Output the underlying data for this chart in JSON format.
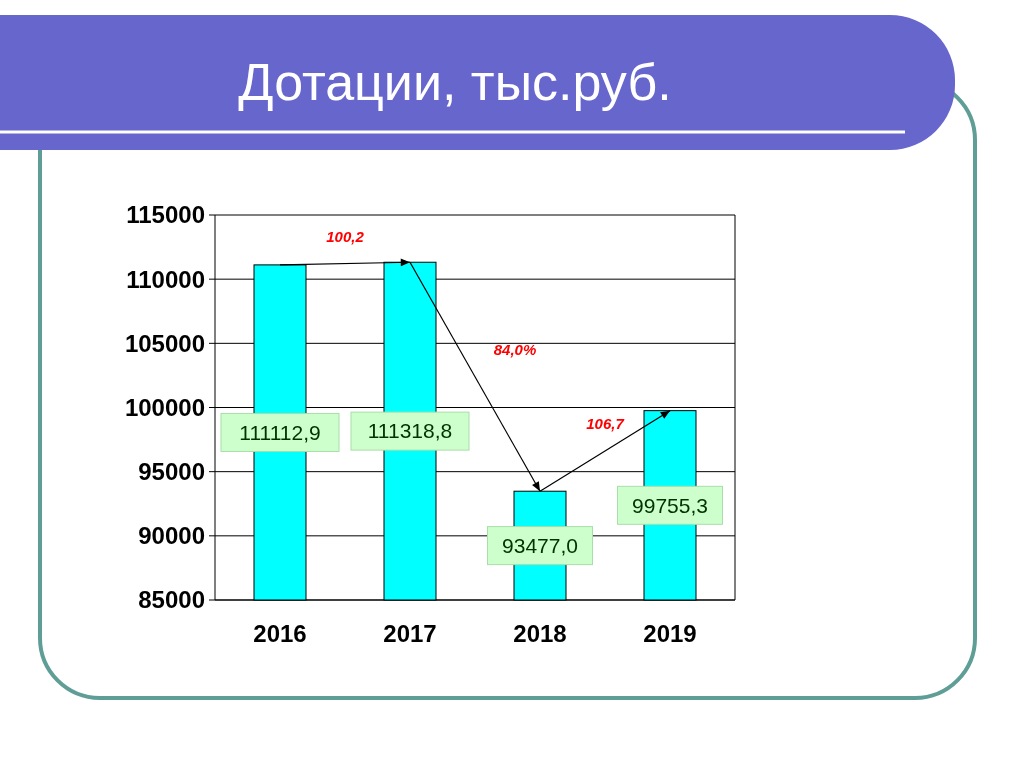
{
  "chart_data": {
    "type": "bar",
    "title": "Дотации, тыс.руб.",
    "categories": [
      "2016",
      "2017",
      "2018",
      "2019"
    ],
    "values": [
      111112.9,
      111318.8,
      93477.0,
      99755.3
    ],
    "value_labels": [
      "111112,9",
      "111318,8",
      "93477,0",
      "99755,3"
    ],
    "color": "#00ffff",
    "ylim": [
      85000,
      115000
    ],
    "yticks": [
      85000,
      90000,
      95000,
      100000,
      105000,
      110000,
      115000
    ],
    "grid": "y",
    "annotations": [
      "100,2",
      "84,0%",
      "106,7"
    ]
  }
}
